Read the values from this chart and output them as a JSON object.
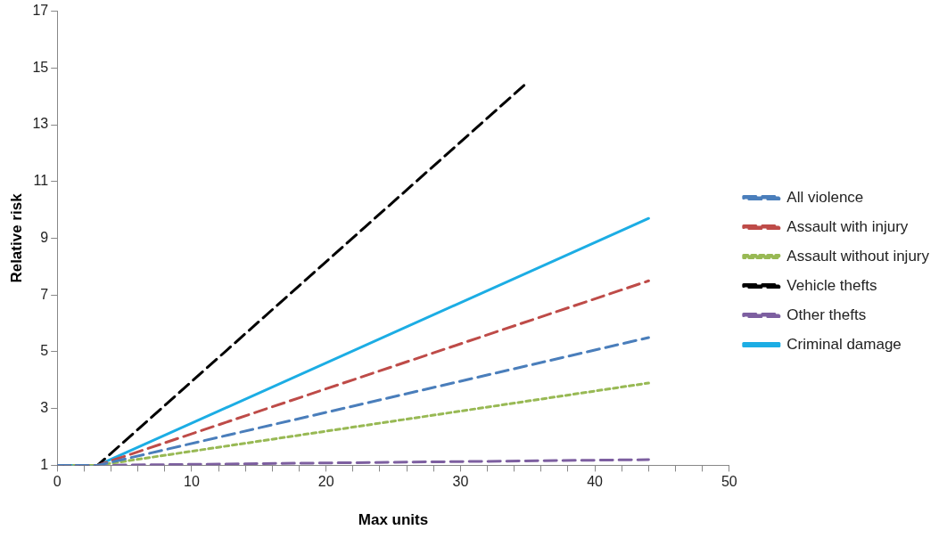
{
  "chart_data": {
    "type": "line",
    "xlabel": "Max units",
    "ylabel": "Relative risk",
    "xlim": [
      0,
      50
    ],
    "ylim": [
      1,
      17
    ],
    "xticks": [
      0,
      {
        "value": 2,
        "label": null
      },
      {
        "value": 4,
        "label": null
      },
      {
        "value": 6,
        "label": null
      },
      {
        "value": 8,
        "label": null
      },
      10,
      {
        "value": 12,
        "label": null
      },
      {
        "value": 14,
        "label": null
      },
      {
        "value": 16,
        "label": null
      },
      {
        "value": 18,
        "label": null
      },
      20,
      {
        "value": 22,
        "label": null
      },
      {
        "value": 24,
        "label": null
      },
      {
        "value": 26,
        "label": null
      },
      {
        "value": 28,
        "label": null
      },
      30,
      {
        "value": 32,
        "label": null
      },
      {
        "value": 34,
        "label": null
      },
      {
        "value": 36,
        "label": null
      },
      {
        "value": 38,
        "label": null
      },
      40,
      {
        "value": 42,
        "label": null
      },
      {
        "value": 44,
        "label": null
      },
      {
        "value": 46,
        "label": null
      },
      {
        "value": 48,
        "label": null
      },
      50
    ],
    "yticks": [
      1,
      3,
      5,
      7,
      9,
      11,
      13,
      15,
      17
    ],
    "grid": false,
    "legend": "right",
    "marker": "none",
    "series": [
      {
        "name": "All violence",
        "color": "#4a7ebb",
        "line_style": "dashed",
        "x": [
          0,
          3,
          44
        ],
        "values": [
          1,
          1,
          5.5
        ]
      },
      {
        "name": "Assault with injury",
        "color": "#be4b48",
        "line_style": "dashed",
        "x": [
          0,
          3,
          44
        ],
        "values": [
          1,
          1,
          7.5
        ]
      },
      {
        "name": "Assault without injury",
        "color": "#98b954",
        "line_style": "dotted",
        "x": [
          0,
          3,
          44
        ],
        "values": [
          1,
          1,
          3.9
        ]
      },
      {
        "name": "Vehicle thefts",
        "color": "#000000",
        "line_style": "dashed",
        "x": [
          0,
          3,
          35
        ],
        "values": [
          1,
          1,
          14.5
        ]
      },
      {
        "name": "Other thefts",
        "color": "#7d5fa0",
        "line_style": "dashed",
        "x": [
          0,
          3,
          44
        ],
        "values": [
          1,
          1,
          1.2
        ]
      },
      {
        "name": "Criminal damage",
        "color": "#1cade4",
        "line_style": "solid",
        "x": [
          0,
          3,
          44
        ],
        "values": [
          1,
          1,
          9.7
        ]
      }
    ]
  }
}
